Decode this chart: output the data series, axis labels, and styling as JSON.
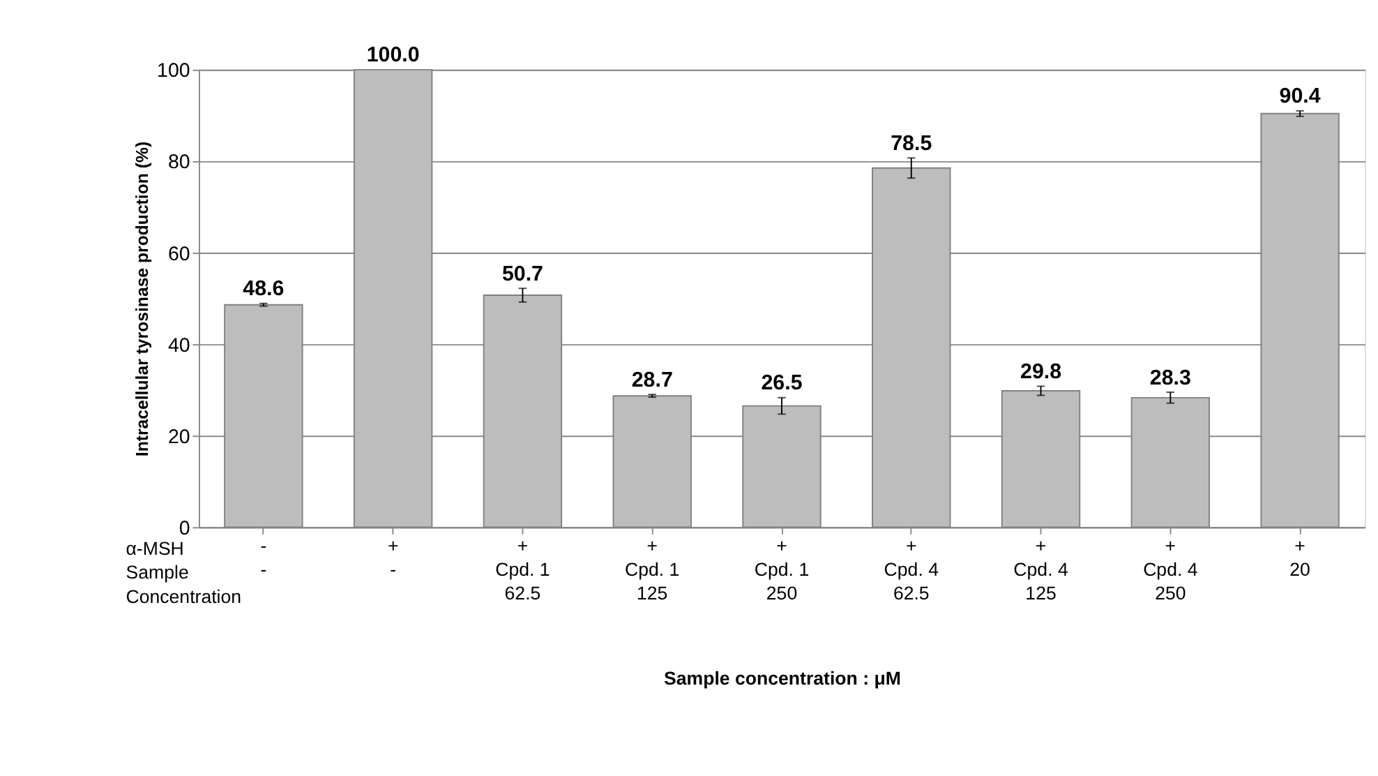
{
  "chart_data": {
    "type": "bar",
    "ylabel": "Intracellular tyrosinase production (%)",
    "xlabel": "Sample concentration : μM",
    "categories": [
      "-\n-\n",
      "+\n-\n",
      "+\nCpd. 1\n62.5",
      "+\nCpd. 1\n125",
      "+\nCpd. 1\n250",
      "+\nCpd. 4\n62.5",
      "+\nCpd. 4\n125",
      "+\nCpd. 4\n250",
      "+\n\n20"
    ],
    "values": [
      48.6,
      100.0,
      50.7,
      28.7,
      26.5,
      78.5,
      29.8,
      28.3,
      90.4
    ],
    "errors": [
      0.3,
      null,
      1.5,
      0.3,
      1.8,
      2.2,
      1.0,
      1.2,
      0.6
    ],
    "color": "#bdbdbd",
    "value_labels": [
      "48.6",
      "100.0",
      "50.7",
      "28.7",
      "26.5",
      "78.5",
      "29.8",
      "28.3",
      "90.4"
    ],
    "annotations": [
      "α-MSH\nSample\nConcentration"
    ],
    "ylim": [
      0,
      100
    ],
    "yticks": [
      0,
      20,
      40,
      60,
      80,
      100
    ],
    "grid": "y"
  }
}
